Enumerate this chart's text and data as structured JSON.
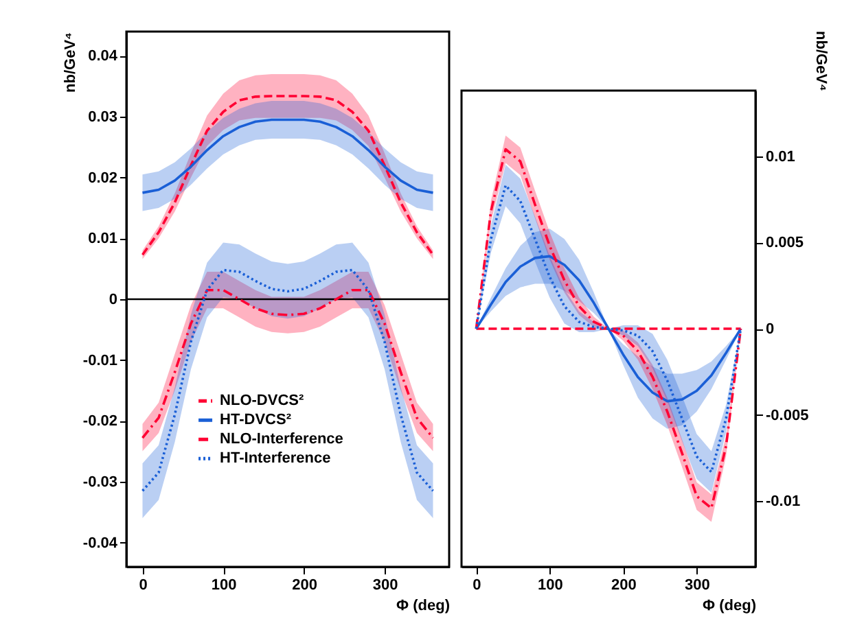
{
  "chart_data": [
    {
      "type": "line",
      "xlabel": "Φ (deg)",
      "ylabel": "nb/GeV⁴",
      "x": [
        0,
        20,
        40,
        60,
        80,
        100,
        120,
        140,
        160,
        180,
        200,
        220,
        240,
        260,
        280,
        300,
        320,
        340,
        360
      ],
      "xlim": [
        -20,
        380
      ],
      "xticks": [
        0,
        100,
        200,
        300
      ],
      "ylim": [
        -0.044,
        0.044
      ],
      "yticks": [
        -0.04,
        -0.03,
        -0.02,
        -0.01,
        0,
        0.01,
        0.02,
        0.03,
        0.04
      ],
      "grid": false,
      "legend": "bottom left",
      "ref_lines": [
        {
          "axis": "y",
          "value": 0,
          "color": "#000000"
        }
      ],
      "series": [
        {
          "name": "NLO-DVCS²",
          "color": "#ff0033",
          "line_style": "dashed",
          "values": [
            0.0073,
            0.011,
            0.0159,
            0.022,
            0.0277,
            0.0308,
            0.0327,
            0.0333,
            0.0334,
            0.0334,
            0.0334,
            0.0333,
            0.0327,
            0.0308,
            0.0277,
            0.022,
            0.0159,
            0.011,
            0.0073
          ],
          "lower": [
            0.0066,
            0.01,
            0.0144,
            0.02,
            0.0252,
            0.0278,
            0.0294,
            0.0298,
            0.0298,
            0.0298,
            0.0298,
            0.0298,
            0.0294,
            0.0278,
            0.0252,
            0.02,
            0.0144,
            0.01,
            0.0066
          ],
          "upper": [
            0.008,
            0.012,
            0.0174,
            0.024,
            0.0302,
            0.0338,
            0.036,
            0.0368,
            0.037,
            0.037,
            0.037,
            0.0368,
            0.036,
            0.0338,
            0.0302,
            0.024,
            0.0174,
            0.012,
            0.008
          ]
        },
        {
          "name": "HT-DVCS²",
          "color": "#1a5fd6",
          "line_style": "solid",
          "values": [
            0.0175,
            0.018,
            0.0195,
            0.0218,
            0.0245,
            0.0268,
            0.0283,
            0.0292,
            0.0295,
            0.0295,
            0.0295,
            0.0292,
            0.0283,
            0.0268,
            0.0245,
            0.0218,
            0.0195,
            0.018,
            0.0175
          ],
          "lower": [
            0.0145,
            0.015,
            0.0165,
            0.0188,
            0.0215,
            0.0238,
            0.0253,
            0.0262,
            0.0264,
            0.0264,
            0.0264,
            0.0262,
            0.0253,
            0.0238,
            0.0215,
            0.0188,
            0.0165,
            0.015,
            0.0145
          ],
          "upper": [
            0.0205,
            0.021,
            0.0225,
            0.0248,
            0.0275,
            0.0298,
            0.0313,
            0.0322,
            0.0326,
            0.0326,
            0.0326,
            0.0322,
            0.0313,
            0.0298,
            0.0275,
            0.0248,
            0.0225,
            0.021,
            0.0205
          ]
        },
        {
          "name": "NLO-Interference",
          "color": "#ff0033",
          "line_style": "dashdot",
          "values": [
            -0.0228,
            -0.0195,
            -0.012,
            -0.004,
            0.0015,
            0.0015,
            0.0,
            -0.0015,
            -0.0024,
            -0.0026,
            -0.0024,
            -0.0015,
            0.0,
            0.0015,
            0.0015,
            -0.004,
            -0.012,
            -0.0195,
            -0.0228
          ],
          "lower": [
            -0.025,
            -0.022,
            -0.015,
            -0.007,
            -0.0015,
            -0.0015,
            -0.003,
            -0.0045,
            -0.0054,
            -0.0056,
            -0.0054,
            -0.0045,
            -0.003,
            -0.0015,
            -0.0015,
            -0.007,
            -0.015,
            -0.022,
            -0.025
          ],
          "upper": [
            -0.0205,
            -0.017,
            -0.009,
            -0.001,
            0.0045,
            0.0045,
            0.003,
            0.0015,
            0.0004,
            0.0004,
            0.0004,
            0.0015,
            0.003,
            0.0045,
            0.0045,
            -0.001,
            -0.009,
            -0.017,
            -0.0205
          ]
        },
        {
          "name": "HT-Interference",
          "color": "#1a5fd6",
          "line_style": "dotted",
          "values": [
            -0.0315,
            -0.0285,
            -0.019,
            -0.007,
            0.0015,
            0.0048,
            0.0045,
            0.003,
            0.0017,
            0.0013,
            0.0017,
            0.003,
            0.0045,
            0.0048,
            0.0015,
            -0.007,
            -0.019,
            -0.0285,
            -0.0315
          ],
          "lower": [
            -0.036,
            -0.033,
            -0.0235,
            -0.0115,
            -0.003,
            0.0003,
            0.0,
            -0.0015,
            -0.0028,
            -0.0032,
            -0.0028,
            -0.0015,
            0.0,
            0.0003,
            -0.003,
            -0.0115,
            -0.0235,
            -0.033,
            -0.036
          ],
          "upper": [
            -0.027,
            -0.024,
            -0.0145,
            -0.0025,
            0.006,
            0.0093,
            0.009,
            0.0075,
            0.0062,
            0.0058,
            0.0062,
            0.0075,
            0.009,
            0.0093,
            0.006,
            -0.0025,
            -0.0145,
            -0.024,
            -0.027
          ]
        }
      ]
    },
    {
      "type": "line",
      "xlabel": "Φ (deg)",
      "ylabel": "nb/GeV⁴",
      "x": [
        0,
        20,
        40,
        60,
        80,
        100,
        120,
        140,
        160,
        180,
        200,
        220,
        240,
        260,
        280,
        300,
        320,
        340,
        360
      ],
      "xlim": [
        -20,
        380
      ],
      "xticks": [
        0,
        100,
        200,
        300
      ],
      "ylim": [
        -0.0138,
        0.0138
      ],
      "yticks": [
        -0.01,
        -0.005,
        0,
        0.005,
        0.01
      ],
      "grid": false,
      "series": [
        {
          "color": "#ff0033",
          "line_style": "dashed",
          "values": [
            0,
            0,
            0,
            0,
            0,
            0,
            0,
            0,
            0,
            0,
            0,
            0,
            0,
            0,
            0,
            0,
            0,
            0,
            0
          ]
        },
        {
          "color": "#1a5fd6",
          "line_style": "solid",
          "values": [
            0,
            0.0014,
            0.0027,
            0.0036,
            0.0041,
            0.0042,
            0.0037,
            0.0028,
            0.0015,
            0,
            -0.0015,
            -0.0028,
            -0.0037,
            -0.0042,
            -0.0041,
            -0.0036,
            -0.0027,
            -0.0014,
            0
          ],
          "lower": [
            0,
            0.001,
            0.0019,
            0.0024,
            0.0026,
            0.0026,
            0.0022,
            0.0016,
            0.0009,
            0,
            -0.0021,
            -0.004,
            -0.0052,
            -0.0058,
            -0.0056,
            -0.0048,
            -0.0035,
            -0.0018,
            0
          ],
          "upper": [
            0,
            0.0018,
            0.0035,
            0.0048,
            0.0056,
            0.0058,
            0.0052,
            0.004,
            0.0021,
            0,
            -0.0009,
            -0.0016,
            -0.0022,
            -0.0026,
            -0.0026,
            -0.0024,
            -0.0019,
            -0.001,
            0
          ]
        },
        {
          "color": "#ff0033",
          "line_style": "dashdot",
          "values": [
            0,
            0.0068,
            0.0104,
            0.0097,
            0.0072,
            0.0048,
            0.0028,
            0.0013,
            0.0004,
            0,
            -0.0004,
            -0.0013,
            -0.0028,
            -0.0048,
            -0.0072,
            -0.0097,
            -0.0104,
            -0.0068,
            0
          ],
          "lower": [
            0,
            0.0062,
            0.0096,
            0.0089,
            0.0064,
            0.004,
            0.0021,
            0.0008,
            0.0001,
            0,
            -0.0007,
            -0.0018,
            -0.0035,
            -0.0056,
            -0.008,
            -0.0105,
            -0.0112,
            -0.0074,
            0
          ],
          "upper": [
            0,
            0.0074,
            0.0112,
            0.0105,
            0.008,
            0.0056,
            0.0035,
            0.0018,
            0.0007,
            0,
            -0.0001,
            -0.0008,
            -0.0021,
            -0.004,
            -0.0064,
            -0.0089,
            -0.0096,
            -0.0062,
            0
          ]
        },
        {
          "color": "#1a5fd6",
          "line_style": "dotted",
          "values": [
            0,
            0.0052,
            0.0083,
            0.0074,
            0.0052,
            0.003,
            0.0013,
            0.0004,
            0.0001,
            0,
            -0.0001,
            -0.0004,
            -0.0013,
            -0.003,
            -0.0052,
            -0.0074,
            -0.0083,
            -0.0052,
            0
          ],
          "lower": [
            0,
            0.0044,
            0.0071,
            0.0061,
            0.0039,
            0.0018,
            0.0003,
            -0.0002,
            -0.0002,
            0,
            -0.0004,
            -0.001,
            -0.0023,
            -0.0042,
            -0.0065,
            -0.0087,
            -0.0095,
            -0.006,
            0
          ],
          "upper": [
            0,
            0.006,
            0.0095,
            0.0087,
            0.0065,
            0.0042,
            0.0023,
            0.001,
            0.0004,
            0,
            0.0002,
            0.0002,
            -0.0003,
            -0.0018,
            -0.0039,
            -0.0061,
            -0.0071,
            -0.0044,
            0
          ]
        }
      ]
    }
  ]
}
